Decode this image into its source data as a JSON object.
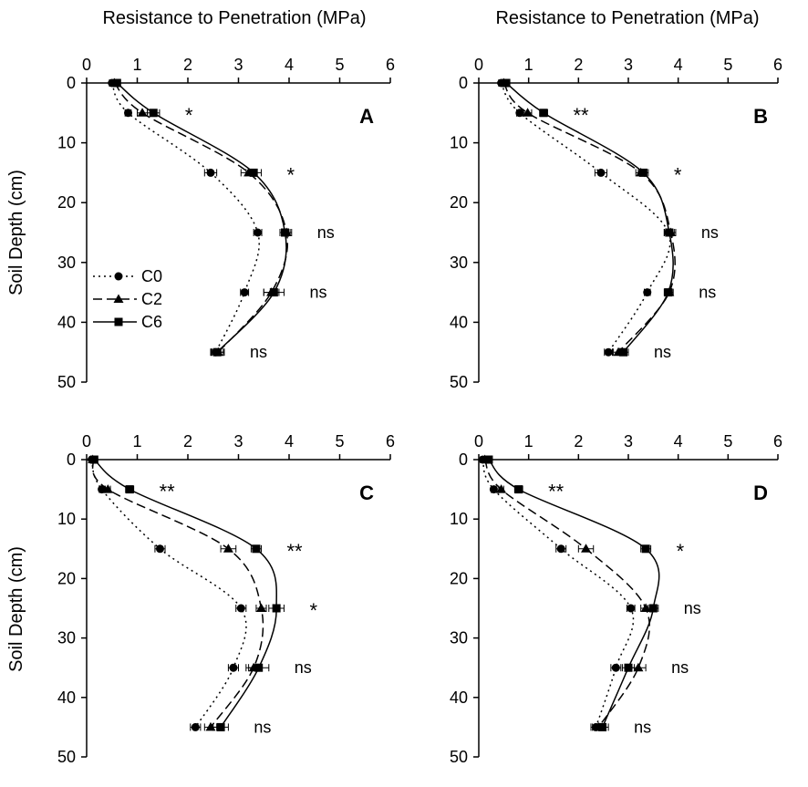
{
  "chart_data": {
    "type": "line",
    "x_axis_title": "Resistance to Penetration (MPa)",
    "y_axis_title": "Soil Depth (cm)",
    "x_ticks": [
      "0",
      "1",
      "2",
      "3",
      "4",
      "5",
      "6"
    ],
    "y_ticks": [
      "0",
      "10",
      "20",
      "30",
      "40",
      "50"
    ],
    "xlim": [
      0,
      6
    ],
    "ylim": [
      0,
      50
    ],
    "depths": [
      0,
      5,
      15,
      25,
      35,
      45
    ],
    "legend": [
      {
        "name": "C0",
        "marker": "circle",
        "line": "dotted"
      },
      {
        "name": "C2",
        "marker": "triangle",
        "line": "dashed"
      },
      {
        "name": "C6",
        "marker": "square",
        "line": "solid"
      }
    ],
    "panels": [
      {
        "label": "A",
        "significance": [
          "*",
          "*",
          "ns",
          "ns",
          "ns"
        ],
        "series": [
          {
            "name": "C0",
            "values": [
              0.5,
              0.82,
              2.45,
              3.38,
              3.12,
              2.55
            ],
            "errors": [
              0.05,
              0.06,
              0.12,
              0.08,
              0.08,
              0.1
            ]
          },
          {
            "name": "C2",
            "values": [
              0.55,
              1.1,
              3.2,
              3.95,
              3.65,
              2.6
            ],
            "errors": [
              0.05,
              0.1,
              0.15,
              0.1,
              0.15,
              0.12
            ]
          },
          {
            "name": "C6",
            "values": [
              0.6,
              1.32,
              3.3,
              3.92,
              3.7,
              2.58
            ],
            "errors": [
              0.05,
              0.12,
              0.15,
              0.1,
              0.2,
              0.12
            ]
          }
        ]
      },
      {
        "label": "B",
        "significance": [
          "**",
          "*",
          "ns",
          "ns",
          "ns"
        ],
        "series": [
          {
            "name": "C0",
            "values": [
              0.45,
              0.82,
              2.45,
              3.8,
              3.38,
              2.6
            ],
            "errors": [
              0.05,
              0.06,
              0.12,
              0.08,
              0.06,
              0.08
            ]
          },
          {
            "name": "C2",
            "values": [
              0.5,
              0.98,
              3.25,
              3.85,
              3.82,
              2.8
            ],
            "errors": [
              0.05,
              0.08,
              0.1,
              0.1,
              0.08,
              0.1
            ]
          },
          {
            "name": "C6",
            "values": [
              0.55,
              1.3,
              3.3,
              3.82,
              3.8,
              2.9
            ],
            "errors": [
              0.05,
              0.08,
              0.1,
              0.1,
              0.08,
              0.1
            ]
          }
        ]
      },
      {
        "label": "C",
        "significance": [
          "**",
          "**",
          "*",
          "ns",
          "ns"
        ],
        "series": [
          {
            "name": "C0",
            "values": [
              0.1,
              0.3,
              1.45,
              3.05,
              2.9,
              2.15
            ],
            "errors": [
              0.04,
              0.05,
              0.1,
              0.1,
              0.1,
              0.1
            ]
          },
          {
            "name": "C2",
            "values": [
              0.12,
              0.42,
              2.8,
              3.45,
              3.3,
              2.45
            ],
            "errors": [
              0.04,
              0.05,
              0.15,
              0.1,
              0.15,
              0.12
            ]
          },
          {
            "name": "C6",
            "values": [
              0.15,
              0.85,
              3.35,
              3.75,
              3.4,
              2.65
            ],
            "errors": [
              0.04,
              0.08,
              0.1,
              0.15,
              0.2,
              0.15
            ]
          }
        ]
      },
      {
        "label": "D",
        "significance": [
          "**",
          "*",
          "ns",
          "ns",
          "ns"
        ],
        "series": [
          {
            "name": "C0",
            "values": [
              0.08,
              0.3,
              1.65,
              3.05,
              2.75,
              2.35
            ],
            "errors": [
              0.04,
              0.05,
              0.1,
              0.08,
              0.1,
              0.1
            ]
          },
          {
            "name": "C2",
            "values": [
              0.12,
              0.45,
              2.15,
              3.35,
              3.2,
              2.4
            ],
            "errors": [
              0.04,
              0.05,
              0.15,
              0.1,
              0.15,
              0.12
            ]
          },
          {
            "name": "C6",
            "values": [
              0.2,
              0.8,
              3.35,
              3.5,
              3.0,
              2.48
            ],
            "errors": [
              0.04,
              0.08,
              0.1,
              0.1,
              0.12,
              0.12
            ]
          }
        ]
      }
    ]
  }
}
